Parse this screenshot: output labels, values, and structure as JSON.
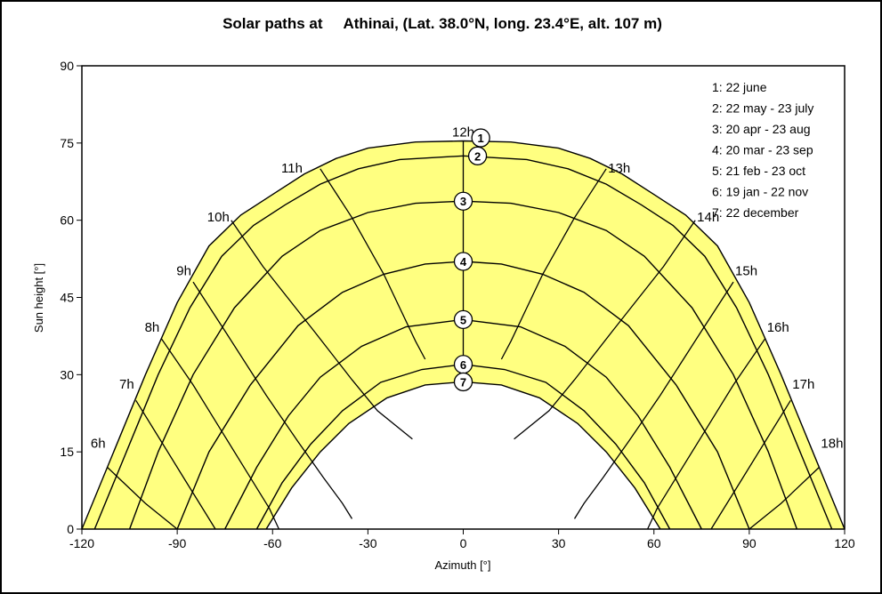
{
  "chart_data": {
    "type": "line",
    "title": "Solar paths at     Athinai, (Lat. 38.0°N, long. 23.4°E, alt. 107 m)",
    "xlabel": "Azimuth [°]",
    "ylabel": "Sun height [°]",
    "xlim": [
      -120,
      120
    ],
    "ylim": [
      0,
      90
    ],
    "xticks": [
      -120,
      -90,
      -60,
      -30,
      0,
      30,
      60,
      90,
      120
    ],
    "yticks": [
      0,
      15,
      30,
      45,
      60,
      75,
      90
    ],
    "grid": false,
    "legend_position": "top-right",
    "colors": {
      "fill": "#ffff80",
      "line": "#000000",
      "plot_bg": "#ffffff"
    },
    "legend": [
      "1: 22 june",
      "2: 22 may - 23 july",
      "3: 20 apr - 23 aug",
      "4: 20 mar - 23 sep",
      "5: 21 feb - 23 oct",
      "6: 19 jan - 22 nov",
      "7: 22 december"
    ],
    "series": [
      {
        "marker": "1",
        "points": [
          [
            -120,
            0
          ],
          [
            -110,
            15
          ],
          [
            -100,
            30
          ],
          [
            -90,
            44
          ],
          [
            -80,
            55
          ],
          [
            -70,
            61
          ],
          [
            -60,
            65
          ],
          [
            -50,
            69
          ],
          [
            -40,
            72
          ],
          [
            -30,
            74
          ],
          [
            -15,
            75.2
          ],
          [
            0,
            75.4
          ],
          [
            15,
            75.2
          ],
          [
            30,
            74
          ],
          [
            40,
            72
          ],
          [
            50,
            69
          ],
          [
            60,
            65
          ],
          [
            70,
            61
          ],
          [
            80,
            55
          ],
          [
            90,
            44
          ],
          [
            100,
            30
          ],
          [
            110,
            15
          ],
          [
            120,
            0
          ]
        ]
      },
      {
        "marker": "2",
        "points": [
          [
            -116,
            0
          ],
          [
            -106,
            15
          ],
          [
            -96,
            30
          ],
          [
            -86,
            43
          ],
          [
            -76,
            53
          ],
          [
            -66,
            59
          ],
          [
            -56,
            63
          ],
          [
            -45,
            67
          ],
          [
            -33,
            70
          ],
          [
            -20,
            71.8
          ],
          [
            0,
            72.5
          ],
          [
            20,
            71.8
          ],
          [
            33,
            70
          ],
          [
            45,
            67
          ],
          [
            56,
            63
          ],
          [
            66,
            59
          ],
          [
            76,
            53
          ],
          [
            86,
            43
          ],
          [
            96,
            30
          ],
          [
            106,
            15
          ],
          [
            116,
            0
          ]
        ]
      },
      {
        "marker": "3",
        "points": [
          [
            -105,
            0
          ],
          [
            -96,
            15
          ],
          [
            -85,
            30
          ],
          [
            -72,
            43
          ],
          [
            -57,
            53
          ],
          [
            -45,
            58
          ],
          [
            -30,
            61.5
          ],
          [
            -15,
            63.3
          ],
          [
            0,
            63.7
          ],
          [
            15,
            63.3
          ],
          [
            30,
            61.5
          ],
          [
            45,
            58
          ],
          [
            57,
            53
          ],
          [
            72,
            43
          ],
          [
            85,
            30
          ],
          [
            96,
            15
          ],
          [
            105,
            0
          ]
        ]
      },
      {
        "marker": "4",
        "points": [
          [
            -90,
            0
          ],
          [
            -80,
            15
          ],
          [
            -67,
            28
          ],
          [
            -52,
            39.5
          ],
          [
            -38,
            46
          ],
          [
            -25,
            49.5
          ],
          [
            -12,
            51.5
          ],
          [
            0,
            52
          ],
          [
            12,
            51.5
          ],
          [
            25,
            49.5
          ],
          [
            38,
            46
          ],
          [
            52,
            39.5
          ],
          [
            67,
            28
          ],
          [
            80,
            15
          ],
          [
            90,
            0
          ]
        ]
      },
      {
        "marker": "5",
        "points": [
          [
            -75,
            0
          ],
          [
            -65,
            12
          ],
          [
            -55,
            22
          ],
          [
            -45,
            29.5
          ],
          [
            -32,
            35.5
          ],
          [
            -18,
            39.3
          ],
          [
            0,
            40.7
          ],
          [
            18,
            39.3
          ],
          [
            32,
            35.5
          ],
          [
            45,
            29.5
          ],
          [
            55,
            22
          ],
          [
            65,
            12
          ],
          [
            75,
            0
          ]
        ]
      },
      {
        "marker": "6",
        "points": [
          [
            -65,
            0
          ],
          [
            -57,
            9
          ],
          [
            -48,
            16.5
          ],
          [
            -38,
            23
          ],
          [
            -26,
            28.5
          ],
          [
            -13,
            31
          ],
          [
            0,
            32
          ],
          [
            13,
            31
          ],
          [
            26,
            28.5
          ],
          [
            38,
            23
          ],
          [
            48,
            16.5
          ],
          [
            57,
            9
          ],
          [
            65,
            0
          ]
        ]
      },
      {
        "marker": "7",
        "points": [
          [
            -62,
            0
          ],
          [
            -54,
            8
          ],
          [
            -45,
            15
          ],
          [
            -36,
            20.5
          ],
          [
            -24,
            25.5
          ],
          [
            -12,
            28
          ],
          [
            0,
            28.6
          ],
          [
            12,
            28
          ],
          [
            24,
            25.5
          ],
          [
            36,
            20.5
          ],
          [
            45,
            15
          ],
          [
            54,
            8
          ],
          [
            62,
            0
          ]
        ]
      }
    ],
    "hour_lines": [
      {
        "label": "6h",
        "label_at": [
          -112,
          16.5
        ],
        "points": [
          [
            -112,
            12
          ],
          [
            -100,
            5
          ],
          [
            -90,
            0
          ]
        ]
      },
      {
        "label": "7h",
        "label_at": [
          -103,
          28
        ],
        "points": [
          [
            -103,
            25
          ],
          [
            -95,
            17
          ],
          [
            -87,
            9
          ],
          [
            -81,
            3
          ],
          [
            -78,
            0
          ]
        ]
      },
      {
        "label": "8h",
        "label_at": [
          -95,
          39
        ],
        "points": [
          [
            -95,
            37
          ],
          [
            -85,
            28
          ],
          [
            -75,
            18
          ],
          [
            -68,
            11
          ],
          [
            -61,
            4
          ],
          [
            -58,
            0
          ]
        ]
      },
      {
        "label": "9h",
        "label_at": [
          -85,
          50
        ],
        "points": [
          [
            -85,
            48
          ],
          [
            -75,
            38.5
          ],
          [
            -62,
            26
          ],
          [
            -52,
            17
          ],
          [
            -44,
            10
          ],
          [
            -38,
            5
          ],
          [
            -35,
            2
          ]
        ]
      },
      {
        "label": "10h",
        "label_at": [
          -73,
          60.5
        ],
        "points": [
          [
            -73,
            60
          ],
          [
            -63,
            51
          ],
          [
            -47,
            38.5
          ],
          [
            -35,
            29
          ],
          [
            -27,
            23
          ],
          [
            -16,
            17.5
          ]
        ]
      },
      {
        "label": "11h",
        "label_at": [
          -50,
          70
        ],
        "points": [
          [
            -45,
            70
          ],
          [
            -35,
            60.5
          ],
          [
            -25,
            49.5
          ],
          [
            -15,
            36.5
          ],
          [
            -12,
            33
          ]
        ]
      },
      {
        "label": "12h",
        "label_at": [
          0,
          77
        ],
        "points": [
          [
            0,
            75.4
          ],
          [
            0,
            28.6
          ]
        ]
      },
      {
        "label": "13h",
        "label_at": [
          45,
          70
        ],
        "points": [
          [
            45,
            70
          ],
          [
            35,
            60.5
          ],
          [
            25,
            49.5
          ],
          [
            15,
            36.5
          ],
          [
            12,
            33
          ]
        ]
      },
      {
        "label": "14h",
        "label_at": [
          73,
          60.5
        ],
        "points": [
          [
            73,
            60
          ],
          [
            63,
            51
          ],
          [
            47,
            38.5
          ],
          [
            35,
            29
          ],
          [
            27,
            23
          ],
          [
            16,
            17.5
          ]
        ]
      },
      {
        "label": "15h",
        "label_at": [
          85,
          50
        ],
        "points": [
          [
            85,
            48
          ],
          [
            75,
            38.5
          ],
          [
            62,
            26
          ],
          [
            52,
            17
          ],
          [
            44,
            10
          ],
          [
            38,
            5
          ],
          [
            35,
            2
          ]
        ]
      },
      {
        "label": "16h",
        "label_at": [
          95,
          39
        ],
        "points": [
          [
            95,
            37
          ],
          [
            85,
            28
          ],
          [
            75,
            18
          ],
          [
            68,
            11
          ],
          [
            61,
            4
          ],
          [
            58,
            0
          ]
        ]
      },
      {
        "label": "17h",
        "label_at": [
          103,
          28
        ],
        "points": [
          [
            103,
            25
          ],
          [
            95,
            17
          ],
          [
            87,
            9
          ],
          [
            81,
            3
          ],
          [
            78,
            0
          ]
        ]
      },
      {
        "label": "18h",
        "label_at": [
          112,
          16.5
        ],
        "points": [
          [
            112,
            12
          ],
          [
            100,
            5
          ],
          [
            90,
            0
          ]
        ]
      }
    ]
  }
}
